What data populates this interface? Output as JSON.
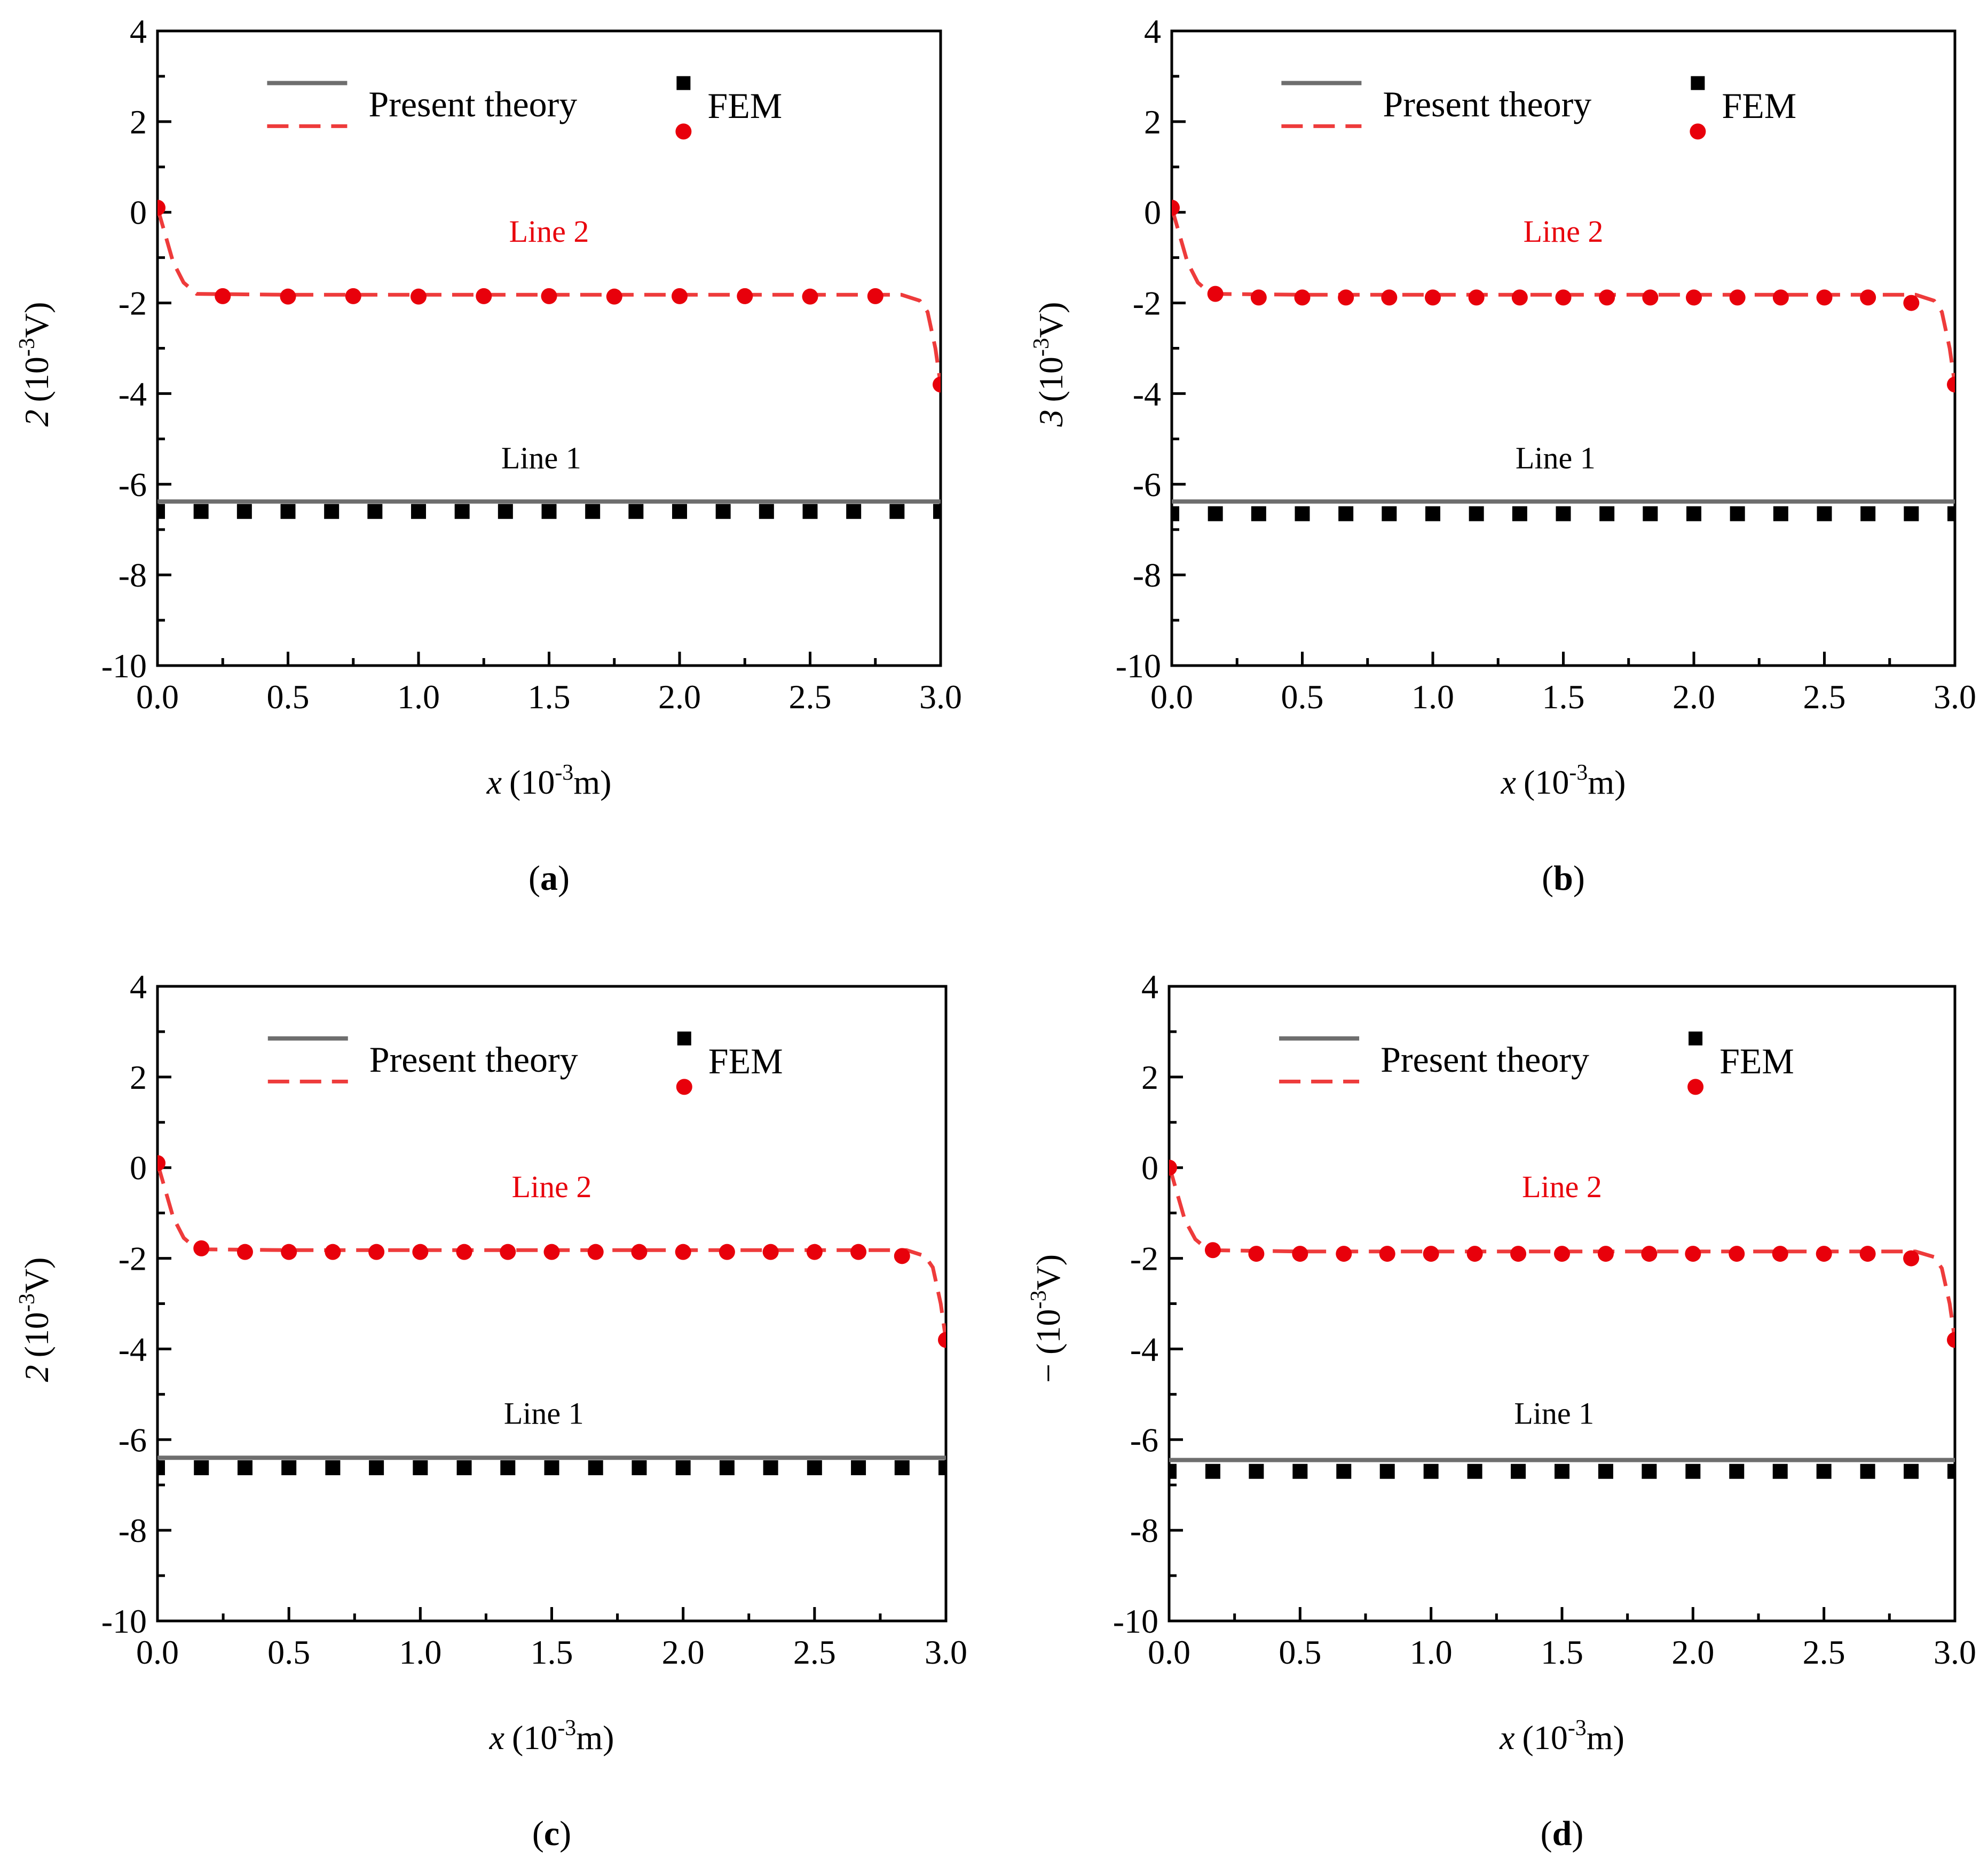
{
  "figure": {
    "subfigure_labels": [
      "(a)",
      "(b)",
      "(c)",
      "(d)"
    ]
  },
  "chart_data": [
    {
      "type": "line",
      "panel": "a",
      "xlabel_var": "x",
      "xlabel_unit_pre": "(10",
      "xlabel_exp": "-3",
      "xlabel_unit_post": "m)",
      "ylabel_var": "2",
      "ylabel_unit_pre": "(10",
      "ylabel_exp": "-3",
      "ylabel_unit_post": "V)",
      "xlim": [
        0,
        3
      ],
      "ylim": [
        -10,
        4
      ],
      "x_ticks": [
        0,
        0.5,
        1,
        1.5,
        2,
        2.5,
        3
      ],
      "x_tick_labels": [
        "0.0",
        "0.5",
        "1.0",
        "1.5",
        "2.0",
        "2.5",
        "3.0"
      ],
      "y_ticks": [
        -10,
        -8,
        -6,
        -4,
        -2,
        0,
        2,
        4
      ],
      "y_tick_labels": [
        "-10",
        "-8",
        "-6",
        "-4",
        "-2",
        "0",
        "2",
        "4"
      ],
      "legend": {
        "theory_label": "Present theory",
        "fem_label": "FEM",
        "placement": "top"
      },
      "annotations": {
        "line1": "Line 1",
        "line2": "Line 2"
      },
      "series": [
        {
          "name": "Line 1 present theory",
          "style": "solid",
          "color": "#6e6e6e",
          "x": [
            0,
            3
          ],
          "y": [
            -6.38,
            -6.38
          ]
        },
        {
          "name": "Line 2 present theory",
          "style": "dashed",
          "color": "#ee3b3b",
          "x": [
            0,
            0.03,
            0.06,
            0.1,
            0.15,
            0.5,
            1,
            1.5,
            2,
            2.5,
            2.85,
            2.92,
            2.95,
            2.98,
            3
          ],
          "y": [
            0.1,
            -0.5,
            -1.1,
            -1.55,
            -1.8,
            -1.82,
            -1.82,
            -1.82,
            -1.82,
            -1.82,
            -1.82,
            -1.95,
            -2.2,
            -3.0,
            -3.8
          ]
        },
        {
          "name": "Line 1 FEM",
          "marker": "square",
          "color": "#000000",
          "x": [
            0,
            0.167,
            0.333,
            0.5,
            0.667,
            0.833,
            1,
            1.167,
            1.333,
            1.5,
            1.667,
            1.833,
            2,
            2.167,
            2.333,
            2.5,
            2.667,
            2.833,
            3
          ],
          "y": [
            -6.6,
            -6.6,
            -6.6,
            -6.6,
            -6.6,
            -6.6,
            -6.6,
            -6.6,
            -6.6,
            -6.6,
            -6.6,
            -6.6,
            -6.6,
            -6.6,
            -6.6,
            -6.6,
            -6.6,
            -6.6,
            -6.6
          ]
        },
        {
          "name": "Line 2 FEM",
          "marker": "circle",
          "color": "#e8000b",
          "x": [
            0,
            0.25,
            0.5,
            0.75,
            1,
            1.25,
            1.5,
            1.75,
            2,
            2.25,
            2.5,
            2.75,
            3
          ],
          "y": [
            0.1,
            -1.85,
            -1.86,
            -1.85,
            -1.86,
            -1.85,
            -1.85,
            -1.86,
            -1.85,
            -1.85,
            -1.86,
            -1.85,
            -3.8
          ]
        }
      ]
    },
    {
      "type": "line",
      "panel": "b",
      "xlabel_var": "x",
      "xlabel_unit_pre": "(10",
      "xlabel_exp": "-3",
      "xlabel_unit_post": "m)",
      "ylabel_var": "3",
      "ylabel_unit_pre": "(10",
      "ylabel_exp": "-3",
      "ylabel_unit_post": "V)",
      "xlim": [
        0,
        3
      ],
      "ylim": [
        -10,
        4
      ],
      "x_ticks": [
        0,
        0.5,
        1,
        1.5,
        2,
        2.5,
        3
      ],
      "x_tick_labels": [
        "0.0",
        "0.5",
        "1.0",
        "1.5",
        "2.0",
        "2.5",
        "3.0"
      ],
      "y_ticks": [
        -10,
        -8,
        -6,
        -4,
        -2,
        0,
        2,
        4
      ],
      "y_tick_labels": [
        "-10",
        "-8",
        "-6",
        "-4",
        "-2",
        "0",
        "2",
        "4"
      ],
      "legend": {
        "theory_label": "Present theory",
        "fem_label": "FEM",
        "placement": "top"
      },
      "annotations": {
        "line1": "Line 1",
        "line2": "Line 2"
      },
      "series": [
        {
          "name": "Line 1 present theory",
          "style": "solid",
          "color": "#6e6e6e",
          "x": [
            0,
            3
          ],
          "y": [
            -6.38,
            -6.38
          ]
        },
        {
          "name": "Line 2 present theory",
          "style": "dashed",
          "color": "#ee3b3b",
          "x": [
            0,
            0.03,
            0.06,
            0.1,
            0.15,
            0.5,
            1,
            1.5,
            2,
            2.5,
            2.85,
            2.92,
            2.95,
            2.98,
            3
          ],
          "y": [
            0.1,
            -0.5,
            -1.1,
            -1.55,
            -1.8,
            -1.82,
            -1.82,
            -1.82,
            -1.82,
            -1.82,
            -1.82,
            -1.95,
            -2.2,
            -3.0,
            -3.8
          ]
        },
        {
          "name": "Line 1 FEM",
          "marker": "square",
          "color": "#000000",
          "x": [
            0,
            0.167,
            0.333,
            0.5,
            0.667,
            0.833,
            1,
            1.167,
            1.333,
            1.5,
            1.667,
            1.833,
            2,
            2.167,
            2.333,
            2.5,
            2.667,
            2.833,
            3
          ],
          "y": [
            -6.65,
            -6.65,
            -6.65,
            -6.65,
            -6.65,
            -6.65,
            -6.65,
            -6.65,
            -6.65,
            -6.65,
            -6.65,
            -6.65,
            -6.65,
            -6.65,
            -6.65,
            -6.65,
            -6.65,
            -6.65,
            -6.65
          ]
        },
        {
          "name": "Line 2 FEM",
          "marker": "circle",
          "color": "#e8000b",
          "x": [
            0,
            0.167,
            0.333,
            0.5,
            0.667,
            0.833,
            1,
            1.167,
            1.333,
            1.5,
            1.667,
            1.833,
            2,
            2.167,
            2.333,
            2.5,
            2.667,
            2.833,
            3
          ],
          "y": [
            0.1,
            -1.8,
            -1.88,
            -1.88,
            -1.88,
            -1.88,
            -1.88,
            -1.88,
            -1.88,
            -1.88,
            -1.88,
            -1.88,
            -1.88,
            -1.88,
            -1.88,
            -1.88,
            -1.88,
            -2.0,
            -3.8
          ]
        }
      ]
    },
    {
      "type": "line",
      "panel": "c",
      "xlabel_var": "x",
      "xlabel_unit_pre": "(10",
      "xlabel_exp": "-3",
      "xlabel_unit_post": "m)",
      "ylabel_var": "2",
      "ylabel_unit_pre": "(10",
      "ylabel_exp": "-3",
      "ylabel_unit_post": "V)",
      "xlim": [
        0,
        3
      ],
      "ylim": [
        -10,
        4
      ],
      "x_ticks": [
        0,
        0.5,
        1,
        1.5,
        2,
        2.5,
        3
      ],
      "x_tick_labels": [
        "0.0",
        "0.5",
        "1.0",
        "1.5",
        "2.0",
        "2.5",
        "3.0"
      ],
      "y_ticks": [
        -10,
        -8,
        -6,
        -4,
        -2,
        0,
        2,
        4
      ],
      "y_tick_labels": [
        "-10",
        "-8",
        "-6",
        "-4",
        "-2",
        "0",
        "2",
        "4"
      ],
      "legend": {
        "theory_label": "Present theory",
        "fem_label": "FEM",
        "placement": "top"
      },
      "annotations": {
        "line1": "Line 1",
        "line2": "Line 2"
      },
      "series": [
        {
          "name": "Line 1 present theory",
          "style": "solid",
          "color": "#6e6e6e",
          "x": [
            0,
            3
          ],
          "y": [
            -6.4,
            -6.4
          ]
        },
        {
          "name": "Line 2 present theory",
          "style": "dashed",
          "color": "#ee3b3b",
          "x": [
            0,
            0.03,
            0.06,
            0.1,
            0.15,
            0.5,
            1,
            1.5,
            2,
            2.5,
            2.85,
            2.92,
            2.95,
            2.98,
            3
          ],
          "y": [
            0.1,
            -0.5,
            -1.1,
            -1.55,
            -1.8,
            -1.82,
            -1.82,
            -1.82,
            -1.82,
            -1.82,
            -1.82,
            -1.95,
            -2.2,
            -3.0,
            -3.8
          ]
        },
        {
          "name": "Line 1 FEM",
          "marker": "square",
          "color": "#000000",
          "x": [
            0,
            0.167,
            0.333,
            0.5,
            0.667,
            0.833,
            1,
            1.167,
            1.333,
            1.5,
            1.667,
            1.833,
            2,
            2.167,
            2.333,
            2.5,
            2.667,
            2.833,
            3
          ],
          "y": [
            -6.62,
            -6.62,
            -6.62,
            -6.62,
            -6.62,
            -6.62,
            -6.62,
            -6.62,
            -6.62,
            -6.62,
            -6.62,
            -6.62,
            -6.62,
            -6.62,
            -6.62,
            -6.62,
            -6.62,
            -6.62,
            -6.62
          ]
        },
        {
          "name": "Line 2 FEM",
          "marker": "circle",
          "color": "#e8000b",
          "x": [
            0,
            0.167,
            0.333,
            0.5,
            0.667,
            0.833,
            1,
            1.167,
            1.333,
            1.5,
            1.667,
            1.833,
            2,
            2.167,
            2.333,
            2.5,
            2.667,
            2.833,
            3
          ],
          "y": [
            0.1,
            -1.78,
            -1.86,
            -1.86,
            -1.86,
            -1.86,
            -1.86,
            -1.86,
            -1.86,
            -1.86,
            -1.86,
            -1.86,
            -1.86,
            -1.86,
            -1.86,
            -1.86,
            -1.86,
            -1.95,
            -3.8
          ]
        }
      ]
    },
    {
      "type": "line",
      "panel": "d",
      "xlabel_var": "x",
      "xlabel_unit_pre": "(10",
      "xlabel_exp": "-3",
      "xlabel_unit_post": "m)",
      "ylabel_var": "−",
      "ylabel_unit_pre": "(10",
      "ylabel_exp": "-3",
      "ylabel_unit_post": "V)",
      "xlim": [
        0,
        3
      ],
      "ylim": [
        -10,
        4
      ],
      "x_ticks": [
        0,
        0.5,
        1,
        1.5,
        2,
        2.5,
        3
      ],
      "x_tick_labels": [
        "0.0",
        "0.5",
        "1.0",
        "1.5",
        "2.0",
        "2.5",
        "3.0"
      ],
      "y_ticks": [
        -10,
        -8,
        -6,
        -4,
        -2,
        0,
        2,
        4
      ],
      "y_tick_labels": [
        "-10",
        "-8",
        "-6",
        "-4",
        "-2",
        "0",
        "2",
        "4"
      ],
      "legend": {
        "theory_label": "Present theory",
        "fem_label": "FEM",
        "placement": "top"
      },
      "annotations": {
        "line1": "Line 1",
        "line2": "Line 2"
      },
      "series": [
        {
          "name": "Line 1 present theory",
          "style": "solid",
          "color": "#6e6e6e",
          "x": [
            0,
            3
          ],
          "y": [
            -6.45,
            -6.45
          ]
        },
        {
          "name": "Line 2 present theory",
          "style": "dashed",
          "color": "#ee3b3b",
          "x": [
            0,
            0.03,
            0.06,
            0.1,
            0.15,
            0.5,
            1,
            1.5,
            2,
            2.5,
            2.85,
            2.92,
            2.95,
            2.98,
            3
          ],
          "y": [
            0.05,
            -0.55,
            -1.15,
            -1.58,
            -1.82,
            -1.85,
            -1.85,
            -1.85,
            -1.85,
            -1.85,
            -1.85,
            -1.97,
            -2.22,
            -3.0,
            -3.8
          ]
        },
        {
          "name": "Line 1 FEM",
          "marker": "square",
          "color": "#000000",
          "x": [
            0,
            0.167,
            0.333,
            0.5,
            0.667,
            0.833,
            1,
            1.167,
            1.333,
            1.5,
            1.667,
            1.833,
            2,
            2.167,
            2.333,
            2.5,
            2.667,
            2.833,
            3
          ],
          "y": [
            -6.7,
            -6.7,
            -6.7,
            -6.7,
            -6.7,
            -6.7,
            -6.7,
            -6.7,
            -6.7,
            -6.7,
            -6.7,
            -6.7,
            -6.7,
            -6.7,
            -6.7,
            -6.7,
            -6.7,
            -6.7,
            -6.7
          ]
        },
        {
          "name": "Line 2 FEM",
          "marker": "circle",
          "color": "#e8000b",
          "x": [
            0,
            0.167,
            0.333,
            0.5,
            0.667,
            0.833,
            1,
            1.167,
            1.333,
            1.5,
            1.667,
            1.833,
            2,
            2.167,
            2.333,
            2.5,
            2.667,
            2.833,
            3
          ],
          "y": [
            0.0,
            -1.82,
            -1.9,
            -1.9,
            -1.9,
            -1.9,
            -1.9,
            -1.9,
            -1.9,
            -1.9,
            -1.9,
            -1.9,
            -1.9,
            -1.9,
            -1.9,
            -1.9,
            -1.9,
            -2.0,
            -3.8
          ]
        }
      ]
    }
  ]
}
